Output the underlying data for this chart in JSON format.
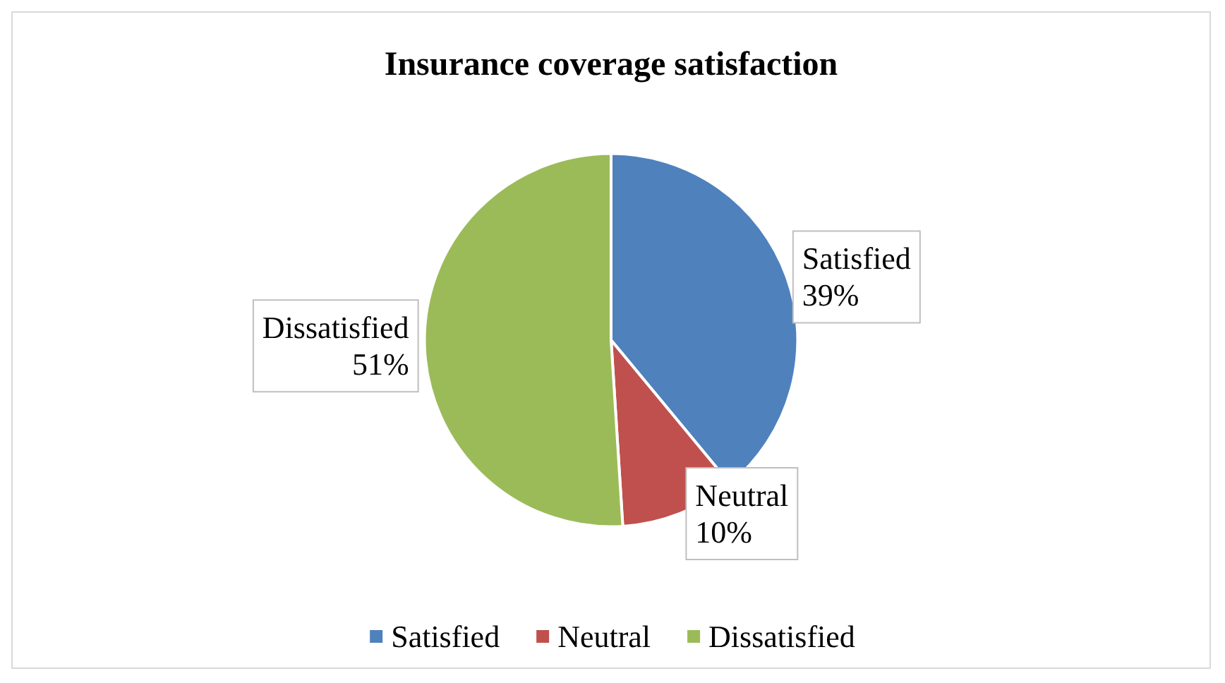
{
  "chart_data": {
    "type": "pie",
    "title": "Insurance coverage satisfaction",
    "categories": [
      "Satisfied",
      "Neutral",
      "Dissatisfied"
    ],
    "values": [
      39,
      10,
      51
    ],
    "colors": [
      "#4f81bd",
      "#c0504d",
      "#9bbb59"
    ],
    "value_labels": [
      "39%",
      "10%",
      "51%"
    ],
    "legend": "bottom"
  }
}
